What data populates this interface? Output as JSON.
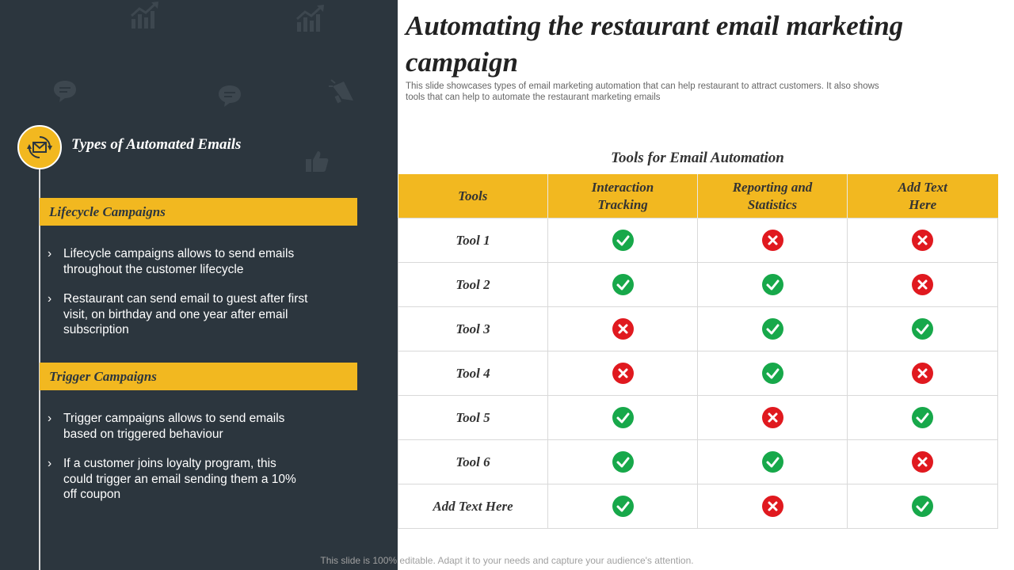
{
  "title": "Automating the restaurant email marketing campaign",
  "subtitle": "This slide showcases types of email marketing automation that can help restaurant to attract customers. It also shows tools that can help to automate the restaurant marketing emails",
  "left": {
    "section_title": "Types of Automated Emails",
    "lifecycle": {
      "heading": "Lifecycle Campaigns",
      "bullets": [
        "Lifecycle campaigns allows to send emails throughout  the customer lifecycle",
        "Restaurant can send email to guest after first visit, on birthday and one year after email subscription"
      ]
    },
    "trigger": {
      "heading": "Trigger Campaigns",
      "bullets": [
        "Trigger campaigns allows to send emails based on triggered behaviour",
        "If a customer joins loyalty  program, this could trigger an email sending them a 10% off coupon"
      ]
    },
    "bullet_glyph": "›"
  },
  "table": {
    "title": "Tools for Email Automation",
    "headers": [
      "Tools",
      "Interaction Tracking",
      "Reporting and Statistics",
      "Add Text Here"
    ],
    "rows": [
      {
        "name": "Tool 1",
        "values": [
          "check",
          "cross",
          "cross"
        ]
      },
      {
        "name": "Tool 2",
        "values": [
          "check",
          "check",
          "cross"
        ]
      },
      {
        "name": "Tool 3",
        "values": [
          "cross",
          "check",
          "check"
        ]
      },
      {
        "name": "Tool 4",
        "values": [
          "cross",
          "check",
          "cross"
        ]
      },
      {
        "name": "Tool 5",
        "values": [
          "check",
          "cross",
          "check"
        ]
      },
      {
        "name": "Tool 6",
        "values": [
          "check",
          "check",
          "cross"
        ]
      },
      {
        "name": "Add Text Here",
        "values": [
          "check",
          "cross",
          "check"
        ]
      }
    ]
  },
  "footer": "This slide is 100% editable. Adapt it to your needs and capture your audience's attention.",
  "colors": {
    "panel": "#2c363e",
    "accent": "#f2b820",
    "check": "#17a84a",
    "cross": "#e0191f"
  },
  "icons": [
    "growth-chart-icon",
    "speech-bubble-icon",
    "megaphone-icon",
    "thumbs-up-icon",
    "email-cycle-icon",
    "check-icon",
    "cross-icon"
  ]
}
